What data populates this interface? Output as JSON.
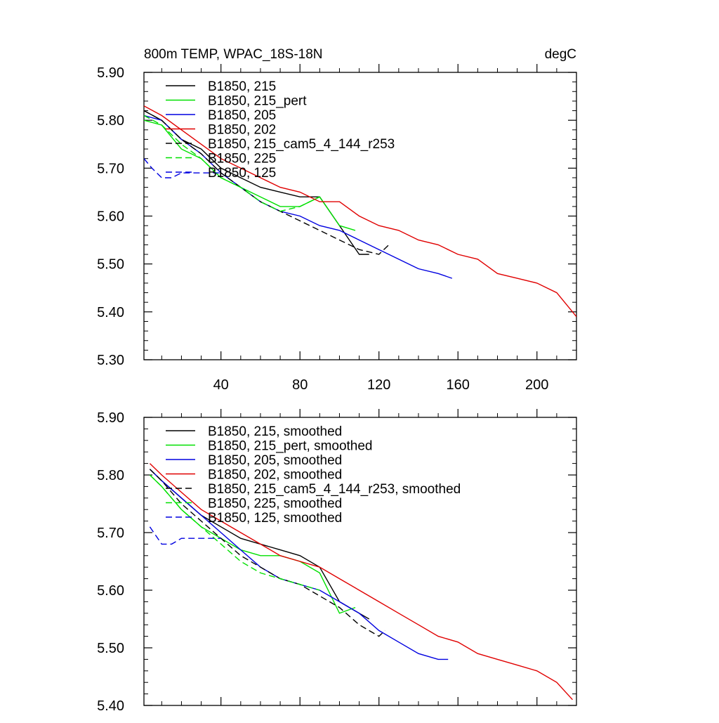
{
  "chart_data": [
    {
      "type": "line",
      "title": "800m TEMP, WPAC_18S-18N",
      "units_label": "degC",
      "xlabel": "",
      "ylabel": "",
      "xlim": [
        1,
        220
      ],
      "ylim": [
        5.3,
        5.9
      ],
      "x_ticks": [
        40,
        80,
        120,
        160,
        200
      ],
      "x_tick_labels": [
        "40",
        "80",
        "120",
        "160",
        "200"
      ],
      "y_ticks": [
        5.3,
        5.4,
        5.5,
        5.6,
        5.7,
        5.8,
        5.9
      ],
      "y_tick_labels": [
        "5.30",
        "5.40",
        "5.50",
        "5.60",
        "5.70",
        "5.80",
        "5.90"
      ],
      "legend_position": "top-left",
      "series": [
        {
          "name": "B1850, 215",
          "color": "#000000",
          "dash": "solid",
          "x": [
            1,
            10,
            20,
            30,
            40,
            50,
            60,
            70,
            80,
            90,
            100,
            110,
            115
          ],
          "y": [
            5.82,
            5.8,
            5.76,
            5.74,
            5.7,
            5.68,
            5.66,
            5.65,
            5.64,
            5.64,
            5.58,
            5.52,
            5.52
          ]
        },
        {
          "name": "B1850, 215_pert",
          "color": "#00e000",
          "dash": "solid",
          "x": [
            1,
            10,
            20,
            30,
            40,
            50,
            60,
            70,
            80,
            90,
            100,
            108
          ],
          "y": [
            5.8,
            5.79,
            5.74,
            5.72,
            5.68,
            5.66,
            5.64,
            5.62,
            5.62,
            5.64,
            5.58,
            5.57
          ]
        },
        {
          "name": "B1850, 205",
          "color": "#0000e0",
          "dash": "solid",
          "x": [
            1,
            10,
            20,
            30,
            40,
            50,
            60,
            70,
            80,
            90,
            100,
            110,
            120,
            130,
            140,
            150,
            157
          ],
          "y": [
            5.81,
            5.8,
            5.76,
            5.73,
            5.69,
            5.66,
            5.63,
            5.61,
            5.6,
            5.58,
            5.57,
            5.55,
            5.53,
            5.51,
            5.49,
            5.48,
            5.47
          ]
        },
        {
          "name": "B1850, 202",
          "color": "#e00000",
          "dash": "solid",
          "x": [
            1,
            10,
            20,
            30,
            40,
            50,
            60,
            70,
            80,
            90,
            100,
            110,
            120,
            130,
            140,
            150,
            160,
            170,
            180,
            190,
            200,
            210,
            220
          ],
          "y": [
            5.83,
            5.81,
            5.78,
            5.75,
            5.72,
            5.7,
            5.68,
            5.66,
            5.65,
            5.63,
            5.63,
            5.6,
            5.58,
            5.57,
            5.55,
            5.54,
            5.52,
            5.51,
            5.48,
            5.47,
            5.46,
            5.44,
            5.39
          ]
        },
        {
          "name": "B1850, 215_cam5_4_144_r253",
          "color": "#000000",
          "dash": "dashed",
          "x": [
            1,
            10,
            20,
            30,
            40,
            50,
            60,
            70,
            80,
            90,
            100,
            110,
            120,
            125
          ],
          "y": [
            5.82,
            5.8,
            5.76,
            5.73,
            5.69,
            5.66,
            5.63,
            5.61,
            5.59,
            5.57,
            5.55,
            5.53,
            5.52,
            5.54
          ]
        },
        {
          "name": "B1850, 225",
          "color": "#00e000",
          "dash": "dashed",
          "x": [
            1,
            10,
            20,
            30,
            40,
            50,
            60,
            70,
            80,
            90
          ],
          "y": [
            5.81,
            5.79,
            5.75,
            5.72,
            5.68,
            5.66,
            5.63,
            5.61,
            5.62,
            5.64
          ]
        },
        {
          "name": "B1850, 125",
          "color": "#0000e0",
          "dash": "dashed",
          "x": [
            1,
            5,
            10,
            15,
            20,
            30,
            40
          ],
          "y": [
            5.72,
            5.7,
            5.68,
            5.68,
            5.69,
            5.69,
            5.69
          ]
        }
      ]
    },
    {
      "type": "line",
      "title": "",
      "units_label": "",
      "xlabel": "",
      "ylabel": "",
      "xlim": [
        1,
        220
      ],
      "ylim": [
        5.4,
        5.9
      ],
      "x_ticks": [
        40,
        80,
        120,
        160,
        200
      ],
      "x_tick_labels": [],
      "y_ticks": [
        5.4,
        5.5,
        5.6,
        5.7,
        5.8,
        5.9
      ],
      "y_tick_labels": [
        "5.40",
        "5.50",
        "5.60",
        "5.70",
        "5.80",
        "5.90"
      ],
      "legend_position": "top-left",
      "series": [
        {
          "name": "B1850, 215, smoothed",
          "color": "#000000",
          "dash": "solid",
          "x": [
            4,
            10,
            20,
            30,
            40,
            50,
            60,
            70,
            80,
            90,
            100,
            110,
            115
          ],
          "y": [
            5.81,
            5.79,
            5.76,
            5.73,
            5.71,
            5.69,
            5.68,
            5.67,
            5.66,
            5.64,
            5.58,
            5.56,
            5.55
          ]
        },
        {
          "name": "B1850, 215_pert, smoothed",
          "color": "#00e000",
          "dash": "solid",
          "x": [
            4,
            10,
            20,
            30,
            40,
            50,
            60,
            70,
            80,
            90,
            100,
            108
          ],
          "y": [
            5.8,
            5.78,
            5.74,
            5.71,
            5.69,
            5.67,
            5.66,
            5.66,
            5.65,
            5.63,
            5.56,
            5.57
          ]
        },
        {
          "name": "B1850, 205, smoothed",
          "color": "#0000e0",
          "dash": "solid",
          "x": [
            4,
            10,
            20,
            30,
            40,
            50,
            60,
            70,
            80,
            90,
            100,
            110,
            120,
            130,
            140,
            150,
            155
          ],
          "y": [
            5.81,
            5.79,
            5.76,
            5.73,
            5.7,
            5.67,
            5.64,
            5.62,
            5.61,
            5.6,
            5.58,
            5.56,
            5.53,
            5.51,
            5.49,
            5.48,
            5.48
          ]
        },
        {
          "name": "B1850, 202, smoothed",
          "color": "#e00000",
          "dash": "solid",
          "x": [
            4,
            10,
            20,
            30,
            40,
            50,
            60,
            70,
            80,
            90,
            100,
            110,
            120,
            130,
            140,
            150,
            160,
            170,
            180,
            190,
            200,
            210,
            218
          ],
          "y": [
            5.82,
            5.8,
            5.77,
            5.74,
            5.72,
            5.7,
            5.68,
            5.66,
            5.65,
            5.64,
            5.62,
            5.6,
            5.58,
            5.56,
            5.54,
            5.52,
            5.51,
            5.49,
            5.48,
            5.47,
            5.46,
            5.44,
            5.41
          ]
        },
        {
          "name": "B1850, 215_cam5_4_144_r253, smoothed",
          "color": "#000000",
          "dash": "dashed",
          "x": [
            4,
            10,
            20,
            30,
            40,
            50,
            60,
            70,
            80,
            90,
            100,
            110,
            120,
            123
          ],
          "y": [
            5.81,
            5.79,
            5.75,
            5.72,
            5.69,
            5.66,
            5.64,
            5.62,
            5.61,
            5.59,
            5.57,
            5.54,
            5.52,
            5.53
          ]
        },
        {
          "name": "B1850, 225, smoothed",
          "color": "#00e000",
          "dash": "dashed",
          "x": [
            4,
            10,
            20,
            30,
            40,
            50,
            60,
            70,
            80,
            90
          ],
          "y": [
            5.8,
            5.78,
            5.74,
            5.71,
            5.68,
            5.65,
            5.63,
            5.62,
            5.61,
            5.6
          ]
        },
        {
          "name": "B1850, 125, smoothed",
          "color": "#0000e0",
          "dash": "dashed",
          "x": [
            4,
            10,
            15,
            20,
            30,
            40
          ],
          "y": [
            5.71,
            5.68,
            5.68,
            5.69,
            5.69,
            5.69
          ]
        }
      ]
    }
  ]
}
